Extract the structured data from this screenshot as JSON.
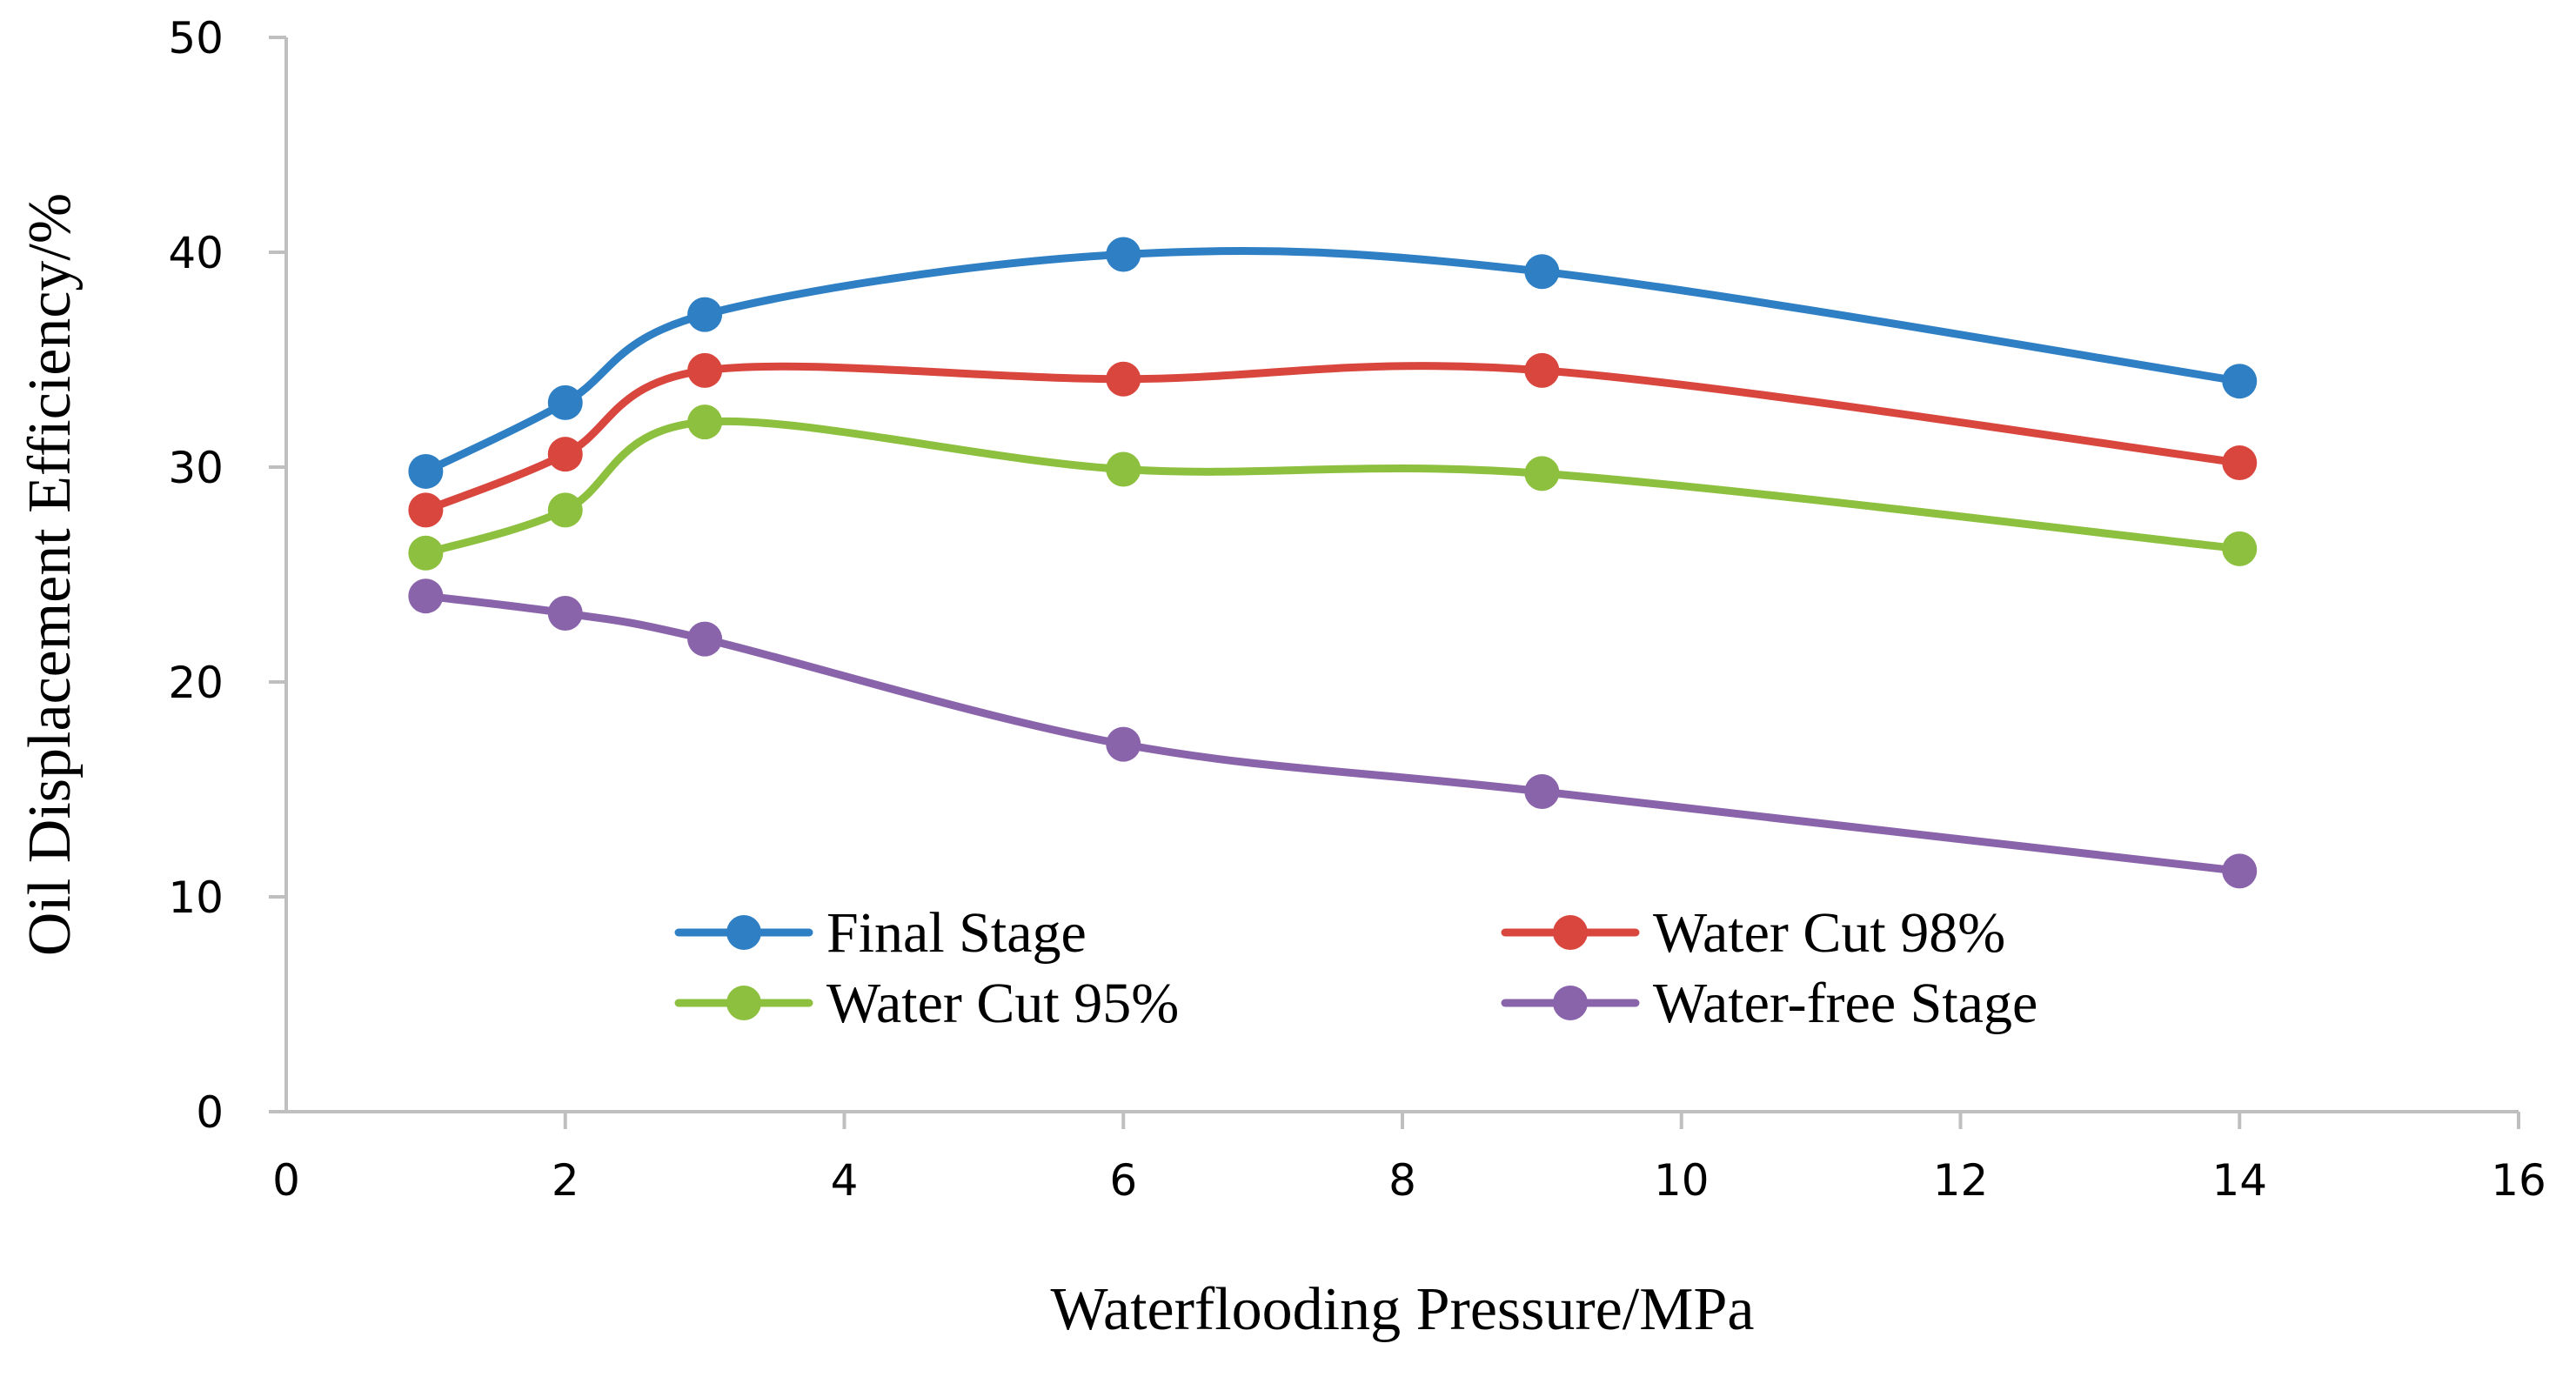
{
  "chart_data": {
    "type": "line",
    "title": "",
    "xlabel": "Waterflooding Pressure/MPa",
    "ylabel": "Oil Displacement Efficiency/%",
    "xlim": [
      0,
      16
    ],
    "ylim": [
      0,
      50
    ],
    "xticks": [
      0,
      2,
      4,
      6,
      8,
      10,
      12,
      14,
      16
    ],
    "yticks": [
      0,
      10,
      20,
      30,
      40,
      50
    ],
    "grid": false,
    "smooth": true,
    "legend_position": "bottom-center",
    "x": [
      1,
      2,
      3,
      6,
      9,
      14
    ],
    "series": [
      {
        "name": "Final Stage",
        "color": "#2E7FC4",
        "values": [
          29.8,
          33.0,
          37.1,
          39.9,
          39.1,
          34.0
        ]
      },
      {
        "name": "Water Cut 98%",
        "color": "#D9463E",
        "values": [
          28.0,
          30.6,
          34.5,
          34.1,
          34.5,
          30.2
        ]
      },
      {
        "name": "Water Cut 95%",
        "color": "#8DC03F",
        "values": [
          26.0,
          28.0,
          32.1,
          29.9,
          29.7,
          26.2
        ]
      },
      {
        "name": "Water-free Stage",
        "color": "#8A64AB",
        "values": [
          24.0,
          23.2,
          22.0,
          17.1,
          14.9,
          11.2
        ]
      }
    ]
  }
}
